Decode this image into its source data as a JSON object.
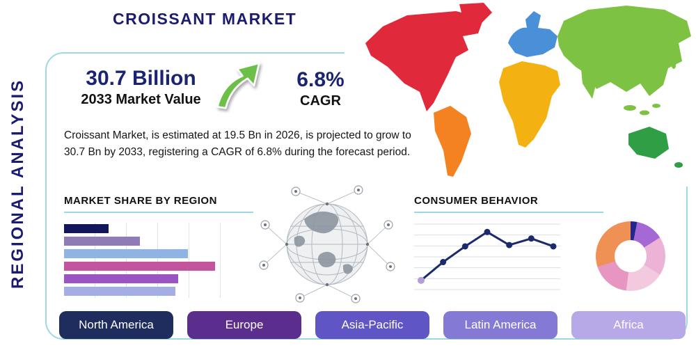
{
  "title": "CROISSANT MARKET",
  "sidebar_label": "REGIONAL ANALYSIS",
  "stats": {
    "market_value": "30.7 Billion",
    "market_value_label": "2033 Market Value",
    "cagr": "6.8%",
    "cagr_label": "CAGR"
  },
  "description": "Croissant Market, is estimated at 19.5 Bn in 2026, is projected to grow to 30.7 Bn by 2033, registering a CAGR of 6.8% during the forecast period.",
  "colors": {
    "accent_navy": "#1b1b70",
    "frame_border": "#9ed7e6",
    "arrow_green": "#6cbf47",
    "text_dark": "#151515"
  },
  "icons": {
    "growth_arrow": "up-right-curved-arrow",
    "globe_network": "connected-globe-illustration"
  },
  "map": {
    "continent_colors": {
      "north-america": "#e02a3c",
      "greenland": "#e02a3c",
      "south-america": "#f58220",
      "europe": "#4a90d9",
      "africa": "#f3b211",
      "asia": "#7dc242",
      "india": "#7dc242",
      "se-islands": "#7dc242",
      "japan": "#7dc242",
      "australia": "#2f9e44",
      "new-zealand": "#2f9e44"
    }
  },
  "chart_data": [
    {
      "type": "bar",
      "title": "MARKET SHARE BY REGION",
      "orientation": "horizontal",
      "categories": [
        "",
        "",
        "",
        "",
        "",
        ""
      ],
      "values": [
        28,
        48,
        78,
        95,
        72,
        70
      ],
      "xlim": [
        0,
        100
      ],
      "grid": true,
      "colors": [
        "#14165c",
        "#8f7bb5",
        "#8fb4e3",
        "#c2559e",
        "#9a55c2",
        "#a5aee3"
      ]
    },
    {
      "type": "line",
      "title": "CONSUMER BEHAVIOR",
      "x": [
        1,
        2,
        3,
        4,
        5,
        6,
        7
      ],
      "values": [
        0.7,
        2.1,
        3.3,
        4.4,
        3.4,
        3.9,
        3.3
      ],
      "ylim": [
        0,
        5
      ],
      "grid": true,
      "line_color": "#1b2a6b",
      "start_marker_color": "#b39ddb"
    },
    {
      "type": "pie",
      "title": "",
      "slices": [
        {
          "value": 3,
          "color": "#26268f"
        },
        {
          "value": 13,
          "color": "#a569d6"
        },
        {
          "value": 18,
          "color": "#edb3d7"
        },
        {
          "value": 18,
          "color": "#f3c9e0"
        },
        {
          "value": 18,
          "color": "#e796c1"
        },
        {
          "value": 30,
          "color": "#ef9055"
        }
      ]
    }
  ],
  "region_buttons": [
    {
      "label": "North America",
      "color": "#1f2d5e"
    },
    {
      "label": "Europe",
      "color": "#5b2e8e"
    },
    {
      "label": "Asia-Pacific",
      "color": "#5f55c4"
    },
    {
      "label": "Latin America",
      "color": "#8579d6"
    },
    {
      "label": "Africa",
      "color": "#b7a8e8"
    }
  ]
}
